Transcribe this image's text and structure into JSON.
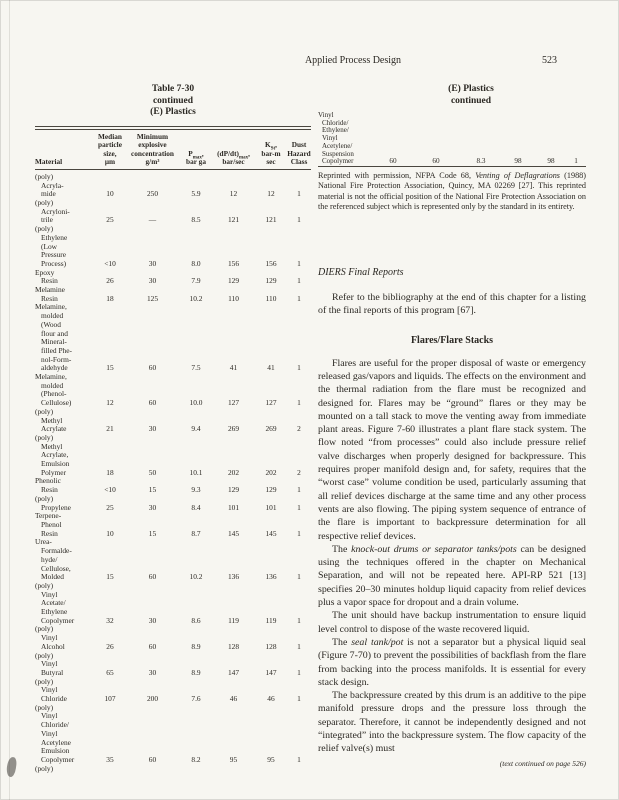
{
  "page_header": {
    "title": "Applied Process Design",
    "page_number": "523"
  },
  "left_column": {
    "table_title_lines": [
      "Table 7-30",
      "continued",
      "(E) Plastics"
    ],
    "table": {
      "column_headers": [
        {
          "lines": [
            "Material"
          ]
        },
        {
          "lines": [
            "Median",
            "particle",
            "size,",
            "μm"
          ]
        },
        {
          "lines": [
            "Minimum",
            "explosive",
            "concentration",
            "g/m³"
          ]
        },
        {
          "lines": [
            "P~max~,",
            "bar ga"
          ]
        },
        {
          "lines": [
            "(dP/dt)~max~,",
            "bar/sec"
          ]
        },
        {
          "lines": [
            "K~St~,",
            "bar-m",
            "sec"
          ]
        },
        {
          "lines": [
            "Dust",
            "Hazard",
            "Class"
          ]
        }
      ],
      "rows": [
        {
          "label_lines": [
            "(poly)",
            "Acryla-",
            "mide"
          ],
          "values": [
            "10",
            "250",
            "5.9",
            "12",
            "12",
            "1"
          ]
        },
        {
          "label_lines": [
            "(poly)",
            "Acryloni-",
            "trile"
          ],
          "values": [
            "25",
            "—",
            "8.5",
            "121",
            "121",
            "1"
          ]
        },
        {
          "label_lines": [
            "(poly)",
            "Ethylene",
            "(Low",
            "Pressure",
            "Process)"
          ],
          "values": [
            "<10",
            "30",
            "8.0",
            "156",
            "156",
            "1"
          ]
        },
        {
          "label_lines": [
            "Epoxy",
            "Resin"
          ],
          "values": [
            "26",
            "30",
            "7.9",
            "129",
            "129",
            "1"
          ]
        },
        {
          "label_lines": [
            "Melamine",
            "Resin"
          ],
          "values": [
            "18",
            "125",
            "10.2",
            "110",
            "110",
            "1"
          ]
        },
        {
          "label_lines": [
            "Melamine,",
            "molded",
            "(Wood",
            "flour and",
            "Mineral-",
            "filled Phe-",
            "nol-Form-",
            "aldehyde"
          ],
          "values": [
            "15",
            "60",
            "7.5",
            "41",
            "41",
            "1"
          ]
        },
        {
          "label_lines": [
            "Melamine,",
            "molded",
            "(Phenol-",
            "Cellulose)"
          ],
          "values": [
            "12",
            "60",
            "10.0",
            "127",
            "127",
            "1"
          ]
        },
        {
          "label_lines": [
            "(poly)",
            "Methyl",
            "Acrylate"
          ],
          "values": [
            "21",
            "30",
            "9.4",
            "269",
            "269",
            "2"
          ]
        },
        {
          "label_lines": [
            "(poly)",
            "Methyl",
            "Acrylate,",
            "Emulsion",
            "Polymer"
          ],
          "values": [
            "18",
            "50",
            "10.1",
            "202",
            "202",
            "2"
          ]
        },
        {
          "label_lines": [
            "Phenolic",
            "Resin"
          ],
          "values": [
            "<10",
            "15",
            "9.3",
            "129",
            "129",
            "1"
          ]
        },
        {
          "label_lines": [
            "(poly)",
            "Propylene"
          ],
          "values": [
            "25",
            "30",
            "8.4",
            "101",
            "101",
            "1"
          ]
        },
        {
          "label_lines": [
            "Terpene-",
            "Phenol",
            "Resin"
          ],
          "values": [
            "10",
            "15",
            "8.7",
            "145",
            "145",
            "1"
          ]
        },
        {
          "label_lines": [
            "Urea-",
            "Formalde-",
            "hyde/",
            "Cellulose,",
            "Molded"
          ],
          "values": [
            "15",
            "60",
            "10.2",
            "136",
            "136",
            "1"
          ]
        },
        {
          "label_lines": [
            "(poly)",
            "Vinyl",
            "Acetate/",
            "Ethylene",
            "Copolymer"
          ],
          "values": [
            "32",
            "30",
            "8.6",
            "119",
            "119",
            "1"
          ]
        },
        {
          "label_lines": [
            "(poly)",
            "Vinyl",
            "Alcohol"
          ],
          "values": [
            "26",
            "60",
            "8.9",
            "128",
            "128",
            "1"
          ]
        },
        {
          "label_lines": [
            "(poly)",
            "Vinyl",
            "Butyral"
          ],
          "values": [
            "65",
            "30",
            "8.9",
            "147",
            "147",
            "1"
          ]
        },
        {
          "label_lines": [
            "(poly)",
            "Vinyl",
            "Chloride"
          ],
          "values": [
            "107",
            "200",
            "7.6",
            "46",
            "46",
            "1"
          ]
        },
        {
          "label_lines": [
            "(poly)",
            "Vinyl",
            "Chloride/",
            "Vinyl",
            "Acetylene",
            "Emulsion",
            "Copolymer"
          ],
          "values": [
            "35",
            "60",
            "8.2",
            "95",
            "95",
            "1"
          ]
        }
      ],
      "carryover_label": "(poly)"
    }
  },
  "right_column": {
    "title_lines": [
      "(E) Plastics",
      "continued"
    ],
    "continued_row": {
      "label_lines": [
        "Vinyl",
        "Chloride/",
        "Ethylene/",
        "Vinyl",
        "Acetylene/",
        "Suspension",
        "Copolymer"
      ],
      "values": [
        "60",
        "60",
        "8.3",
        "98",
        "98",
        "1"
      ]
    },
    "footnote": "Reprinted with permission, NFPA Code 68, *Venting of Deflagrations* (1988) National Fire Protection Association, Quincy, MA 02269 [27]. This reprinted material is not the official position of the National Fire Protection Association on the referenced subject which is represented only by the standard in its entirety.",
    "diers_heading": "DIERS Final Reports",
    "diers_paragraph": "Refer to the bibliography at the end of this chapter for a listing of the final reports of this program [67].",
    "flares_heading": "Flares/Flare Stacks",
    "paragraphs": [
      "Flares are useful for the proper disposal of waste or emergency released gas/vapors and liquids. The effects on the environment and the thermal radiation from the flare must be recognized and designed for. Flares may be “ground” flares or they may be mounted on a tall stack to move the venting away from immediate plant areas. Figure 7-60 illustrates a plant flare stack system. The flow noted “from processes” could also include pressure relief valve discharges when properly designed for backpressure. This requires proper manifold design and, for safety, requires that the “worst case” volume condition be used, particularly assuming that all relief devices discharge at the same time and any other process vents are also flowing. The piping system sequence of entrance of the flare is important to backpressure determination for all respective relief devices.",
      "The *knock-out drums or separator tanks/pots* can be designed using the techniques offered in the chapter on Mechanical Separation, and will not be repeated here. API-RP 521 [13] specifies 20–30 minutes holdup liquid capacity from relief devices plus a vapor space for dropout and a drain volume.",
      "The unit should have backup instrumentation to ensure liquid level control to dispose of the waste recovered liquid.",
      "The *seal tank/pot* is not a separator but a physical liquid seal (Figure 7-70) to prevent the possibilities of backflash from the flare from backing into the process manifolds. It is essential for every stack design.",
      "The backpressure created by this drum is an additive to the pipe manifold pressure drops and the pressure loss through the separator. Therefore, it cannot be independently designed and not “integrated” into the backpressure system. The flow capacity of the relief valve(s) must"
    ],
    "continued_note": "(text continued on page 526)"
  },
  "colors": {
    "paper": "#f7f6f1",
    "ink": "#2b2823",
    "rule": "#4a463f"
  }
}
